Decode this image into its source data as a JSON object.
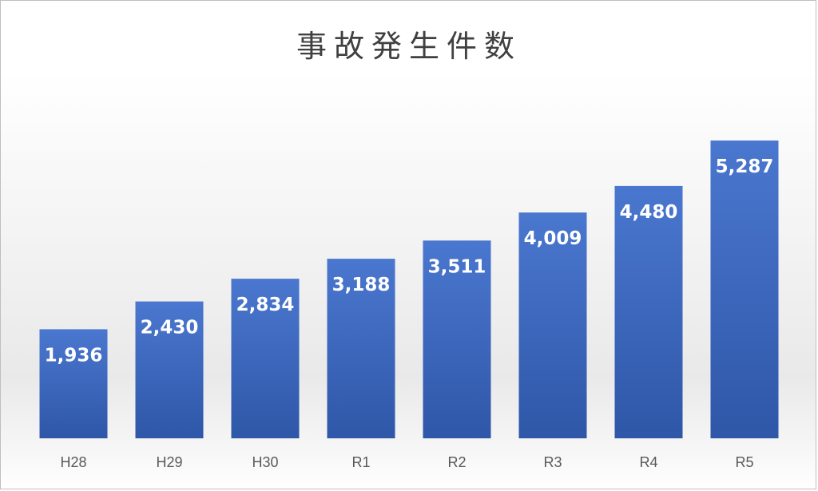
{
  "chart_data": {
    "type": "bar",
    "title": "事故発生件数",
    "categories": [
      "H28",
      "H29",
      "H30",
      "R1",
      "R2",
      "R3",
      "R4",
      "R5"
    ],
    "values": [
      1936,
      2430,
      2834,
      3188,
      3511,
      4009,
      4480,
      5287
    ],
    "value_labels": [
      "1,936",
      "2,430",
      "2,834",
      "3,188",
      "3,511",
      "4,009",
      "4,480",
      "5,287"
    ],
    "ylim": [
      0,
      5287
    ],
    "grid": false,
    "legend": "none",
    "colors": {
      "bar_top": "#4a77cf",
      "bar_bottom": "#2f57a8",
      "label": "#ffffff"
    }
  }
}
